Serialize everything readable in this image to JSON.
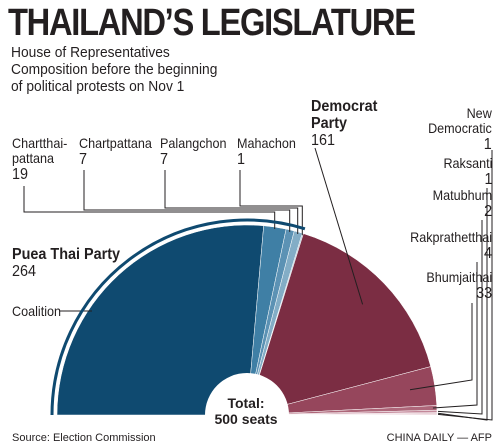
{
  "title": "THAILAND’S LEGISLATURE",
  "subtitle_lines": [
    "House of Representatives",
    "Composition before the beginning",
    "of political protests on Nov 1"
  ],
  "footer": {
    "source": "Source: Election Commission",
    "credit": "CHINA DAILY — AFP"
  },
  "coalition_label": "Coalition",
  "total_label": [
    "Total:",
    "500 seats"
  ],
  "colors": {
    "puea_thai": "#0f4a70",
    "chartthaipattana": "#3f7fa5",
    "chartpattana": "#5c92b4",
    "palangchon": "#83adc6",
    "mahachon": "#a9c5d7",
    "democrat": "#7b2d43",
    "bhumjaithai": "#96465c",
    "rakprathetthai": "#ad6679",
    "matubhum": "#c3889a",
    "raksanti": "#d8adba",
    "new_democratic": "#e9cdd5",
    "coalition_arc": "#0f4a70"
  },
  "labels": {
    "chartthaipattana": {
      "name_lines": [
        "Chartthai-",
        "pattana"
      ],
      "value": "19"
    },
    "chartpattana": {
      "name": "Chartpattana",
      "value": "7"
    },
    "palangchon": {
      "name": "Palangchon",
      "value": "7"
    },
    "mahachon": {
      "name": "Mahachon",
      "value": "1"
    },
    "democrat": {
      "name_lines": [
        "Democrat",
        "Party"
      ],
      "value": "161"
    },
    "new_democratic": {
      "name_lines": [
        "New",
        "Democratic"
      ],
      "value": "1"
    },
    "raksanti": {
      "name": "Raksanti",
      "value": "1"
    },
    "matubhum": {
      "name": "Matubhum",
      "value": "2"
    },
    "rakprathetthai": {
      "name": "Rakprathetthai",
      "value": "4"
    },
    "bhumjaithai": {
      "name": "Bhumjaithai",
      "value": "33"
    },
    "puea_thai": {
      "name": "Puea Thai Party",
      "value": "264"
    }
  },
  "chart_data": {
    "type": "pie",
    "title": "THAILAND’S LEGISLATURE",
    "subtitle": "House of Representatives Composition before the beginning of political protests on Nov 1",
    "total": 500,
    "unit": "seats",
    "slices": [
      {
        "key": "puea_thai",
        "label": "Puea Thai Party",
        "value": 264,
        "coalition": true
      },
      {
        "key": "chartthaipattana",
        "label": "Chartthai-pattana",
        "value": 19,
        "coalition": true
      },
      {
        "key": "chartpattana",
        "label": "Chartpattana",
        "value": 7,
        "coalition": true
      },
      {
        "key": "palangchon",
        "label": "Palangchon",
        "value": 7,
        "coalition": true
      },
      {
        "key": "mahachon",
        "label": "Mahachon",
        "value": 1,
        "coalition": true
      },
      {
        "key": "democrat",
        "label": "Democrat Party",
        "value": 161,
        "coalition": false
      },
      {
        "key": "bhumjaithai",
        "label": "Bhumjaithai",
        "value": 33,
        "coalition": false
      },
      {
        "key": "rakprathetthai",
        "label": "Rakprathetthai",
        "value": 4,
        "coalition": false
      },
      {
        "key": "matubhum",
        "label": "Matubhum",
        "value": 2,
        "coalition": false
      },
      {
        "key": "raksanti",
        "label": "Raksanti",
        "value": 1,
        "coalition": false
      },
      {
        "key": "new_democratic",
        "label": "New Democratic",
        "value": 1,
        "coalition": false
      }
    ]
  }
}
